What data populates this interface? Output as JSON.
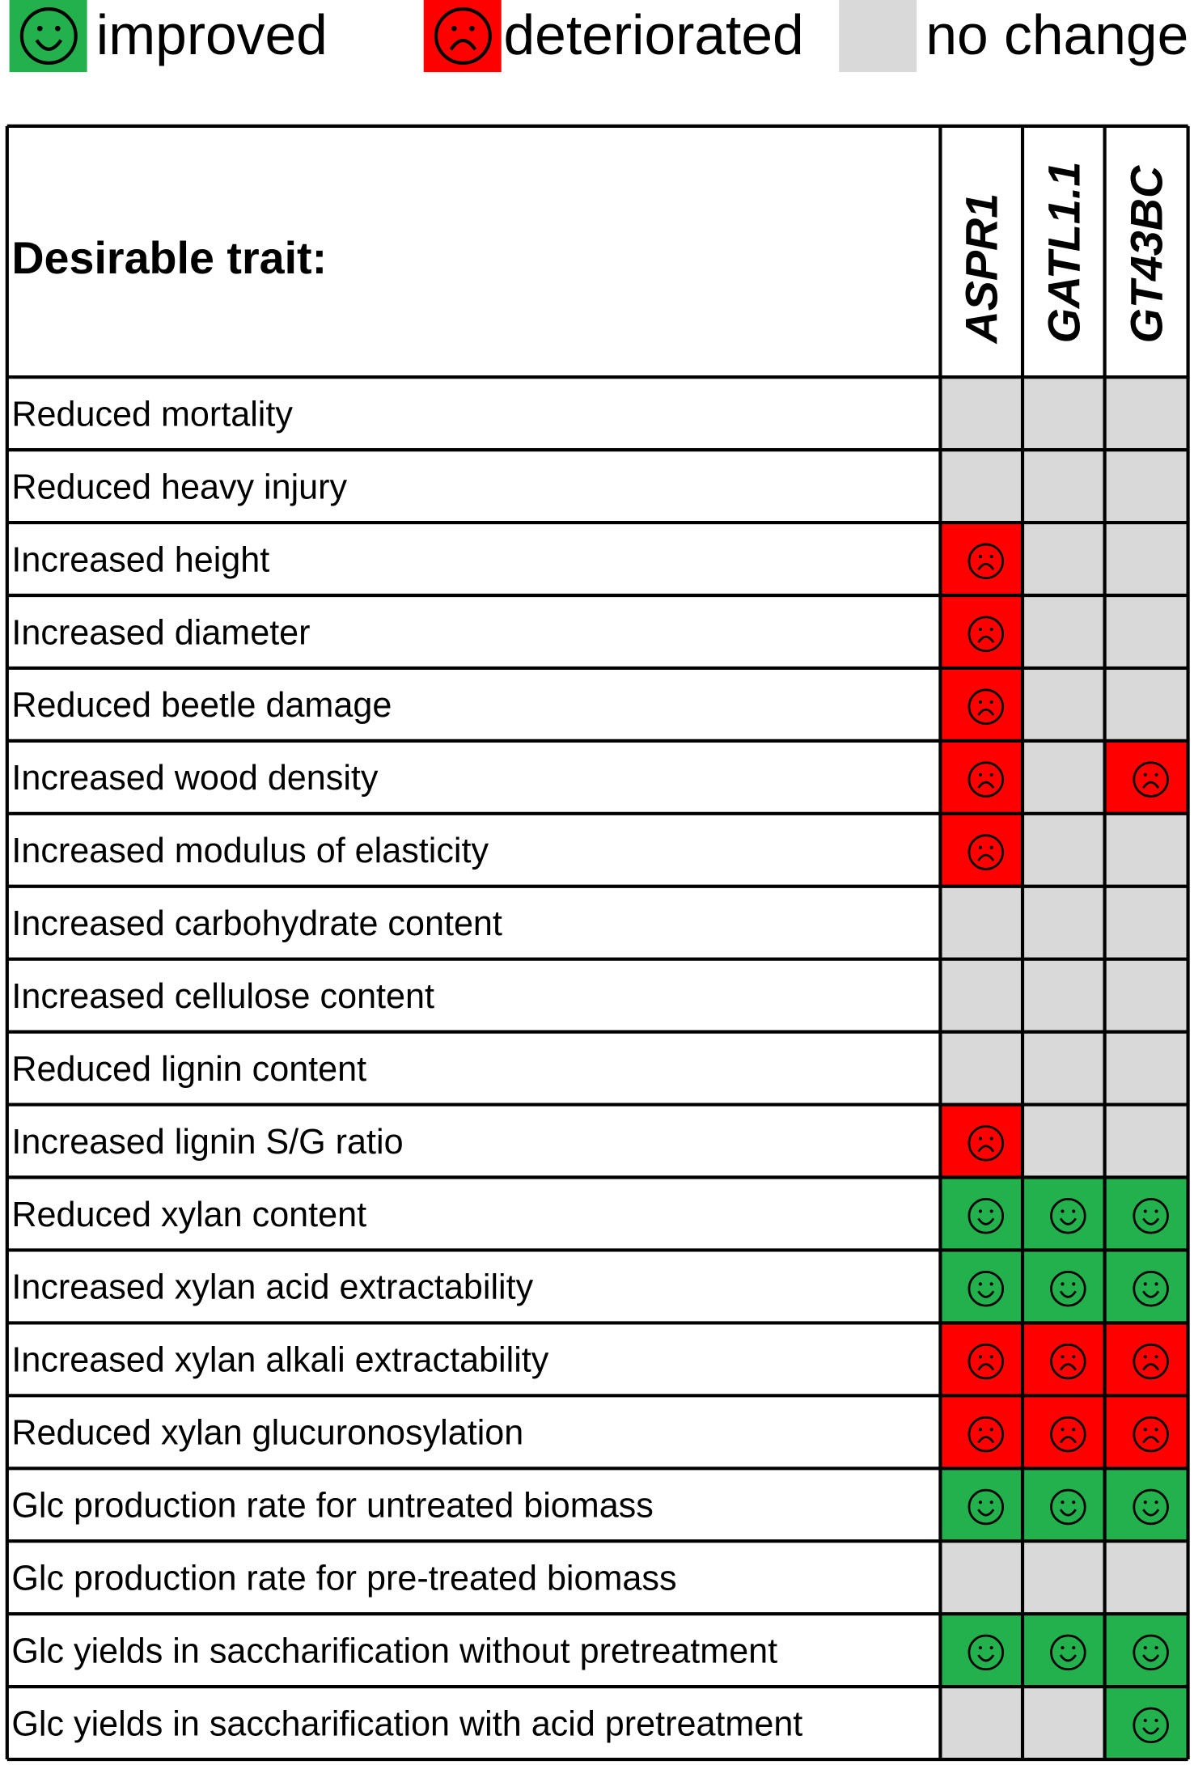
{
  "legend": [
    {
      "label": "improved",
      "color": "#22b14c"
    },
    {
      "label": "deteriorated",
      "color": "#ff0000"
    },
    {
      "label": "no change",
      "color": "#d9d9d9"
    }
  ],
  "table": {
    "header": "Desirable trait:",
    "columns": [
      "ASPR1",
      "GATL1.1",
      "GT43BC"
    ],
    "rows": [
      {
        "trait": "Reduced mortality",
        "cells": [
          2,
          2,
          2
        ]
      },
      {
        "trait": "Reduced heavy injury",
        "cells": [
          2,
          2,
          2
        ]
      },
      {
        "trait": "Increased height",
        "cells": [
          1,
          2,
          2
        ]
      },
      {
        "trait": "Increased diameter",
        "cells": [
          1,
          2,
          2
        ]
      },
      {
        "trait": "Reduced beetle damage",
        "cells": [
          1,
          2,
          2
        ]
      },
      {
        "trait": "Increased wood density",
        "cells": [
          1,
          2,
          1
        ]
      },
      {
        "trait": "Increased modulus of elasticity",
        "cells": [
          1,
          2,
          2
        ]
      },
      {
        "trait": "Increased carbohydrate content",
        "cells": [
          2,
          2,
          2
        ]
      },
      {
        "trait": "Increased cellulose content",
        "cells": [
          2,
          2,
          2
        ]
      },
      {
        "trait": "Reduced lignin content",
        "cells": [
          2,
          2,
          2
        ]
      },
      {
        "trait": "Increased lignin S/G ratio",
        "cells": [
          1,
          2,
          2
        ]
      },
      {
        "trait": "Reduced xylan content",
        "cells": [
          0,
          0,
          0
        ]
      },
      {
        "trait": "Increased xylan acid extractability",
        "cells": [
          0,
          0,
          0
        ]
      },
      {
        "trait": "Increased xylan alkali extractability",
        "cells": [
          1,
          1,
          1
        ]
      },
      {
        "trait": "Reduced xylan glucuronosylation",
        "cells": [
          1,
          1,
          1
        ]
      },
      {
        "trait": "Glc production rate for untreated biomass",
        "cells": [
          0,
          0,
          0
        ]
      },
      {
        "trait": "Glc production rate for pre-treated biomass",
        "cells": [
          2,
          2,
          2
        ]
      },
      {
        "trait": "Glc yields in saccharification without pretreatment",
        "cells": [
          0,
          0,
          0
        ]
      },
      {
        "trait": "Glc yields in saccharification with acid pretreatment",
        "cells": [
          2,
          2,
          0
        ]
      }
    ]
  }
}
